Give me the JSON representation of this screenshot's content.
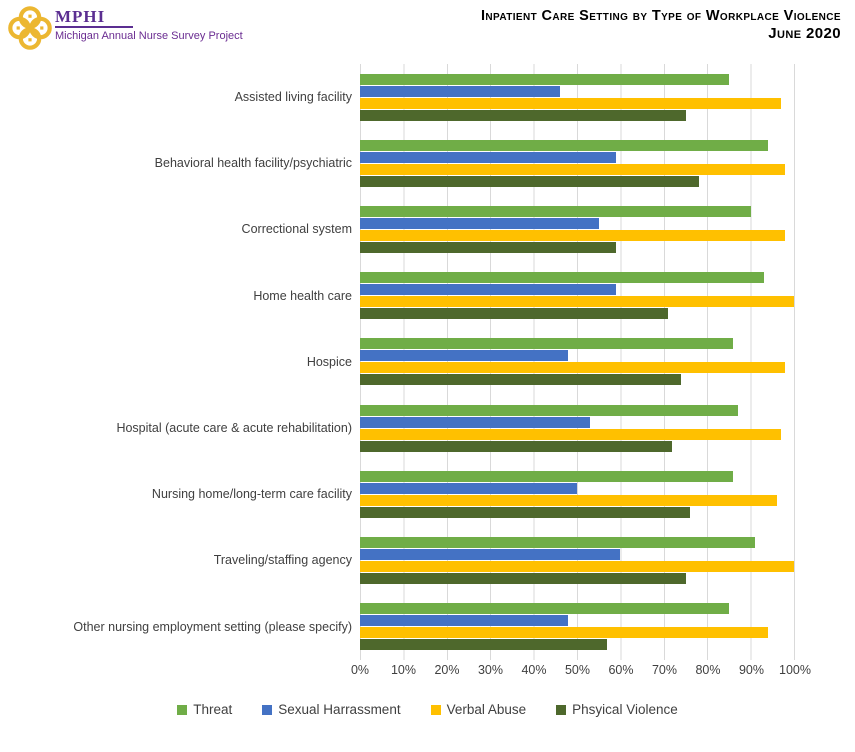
{
  "header": {
    "logo_acronym": "MPHI",
    "logo_subtitle": "Michigan Annual Nurse Survey Project",
    "logo_purple": "#5B2E91",
    "logo_gold": "#ECB731",
    "title_line1": "Inpatient Care Setting by Type of Workplace Violence",
    "title_line2": "June 2020"
  },
  "chart_data": {
    "type": "bar",
    "orientation": "horizontal",
    "title": "Inpatient Care Setting by Type of Workplace Violence",
    "subtitle": "June 2020",
    "categories": [
      "Assisted living facility",
      "Behavioral health facility/psychiatric",
      "Correctional system",
      "Home health care",
      "Hospice",
      "Hospital (acute care & acute rehabilitation)",
      "Nursing home/long-term care facility",
      "Traveling/staffing agency",
      "Other nursing employment setting (please specify)"
    ],
    "series": [
      {
        "name": "Threat",
        "color": "#70AD47",
        "values": [
          85,
          94,
          90,
          93,
          86,
          87,
          86,
          91,
          85
        ]
      },
      {
        "name": "Sexual Harrassment",
        "color": "#4472C4",
        "values": [
          46,
          59,
          55,
          59,
          48,
          53,
          50,
          60,
          48
        ]
      },
      {
        "name": "Verbal Abuse",
        "color": "#FFC000",
        "values": [
          97,
          98,
          98,
          100,
          98,
          97,
          96,
          100,
          94
        ]
      },
      {
        "name": "Phsyical Violence",
        "color": "#4E682C",
        "values": [
          75,
          78,
          59,
          71,
          74,
          72,
          76,
          75,
          57
        ]
      }
    ],
    "xlim": [
      0,
      100
    ],
    "x_ticks": [
      "0%",
      "10%",
      "20%",
      "30%",
      "40%",
      "50%",
      "60%",
      "70%",
      "80%",
      "90%",
      "100%"
    ],
    "gridlines": true,
    "gridline_color": "#D9D9D9",
    "legend_position": "bottom"
  }
}
